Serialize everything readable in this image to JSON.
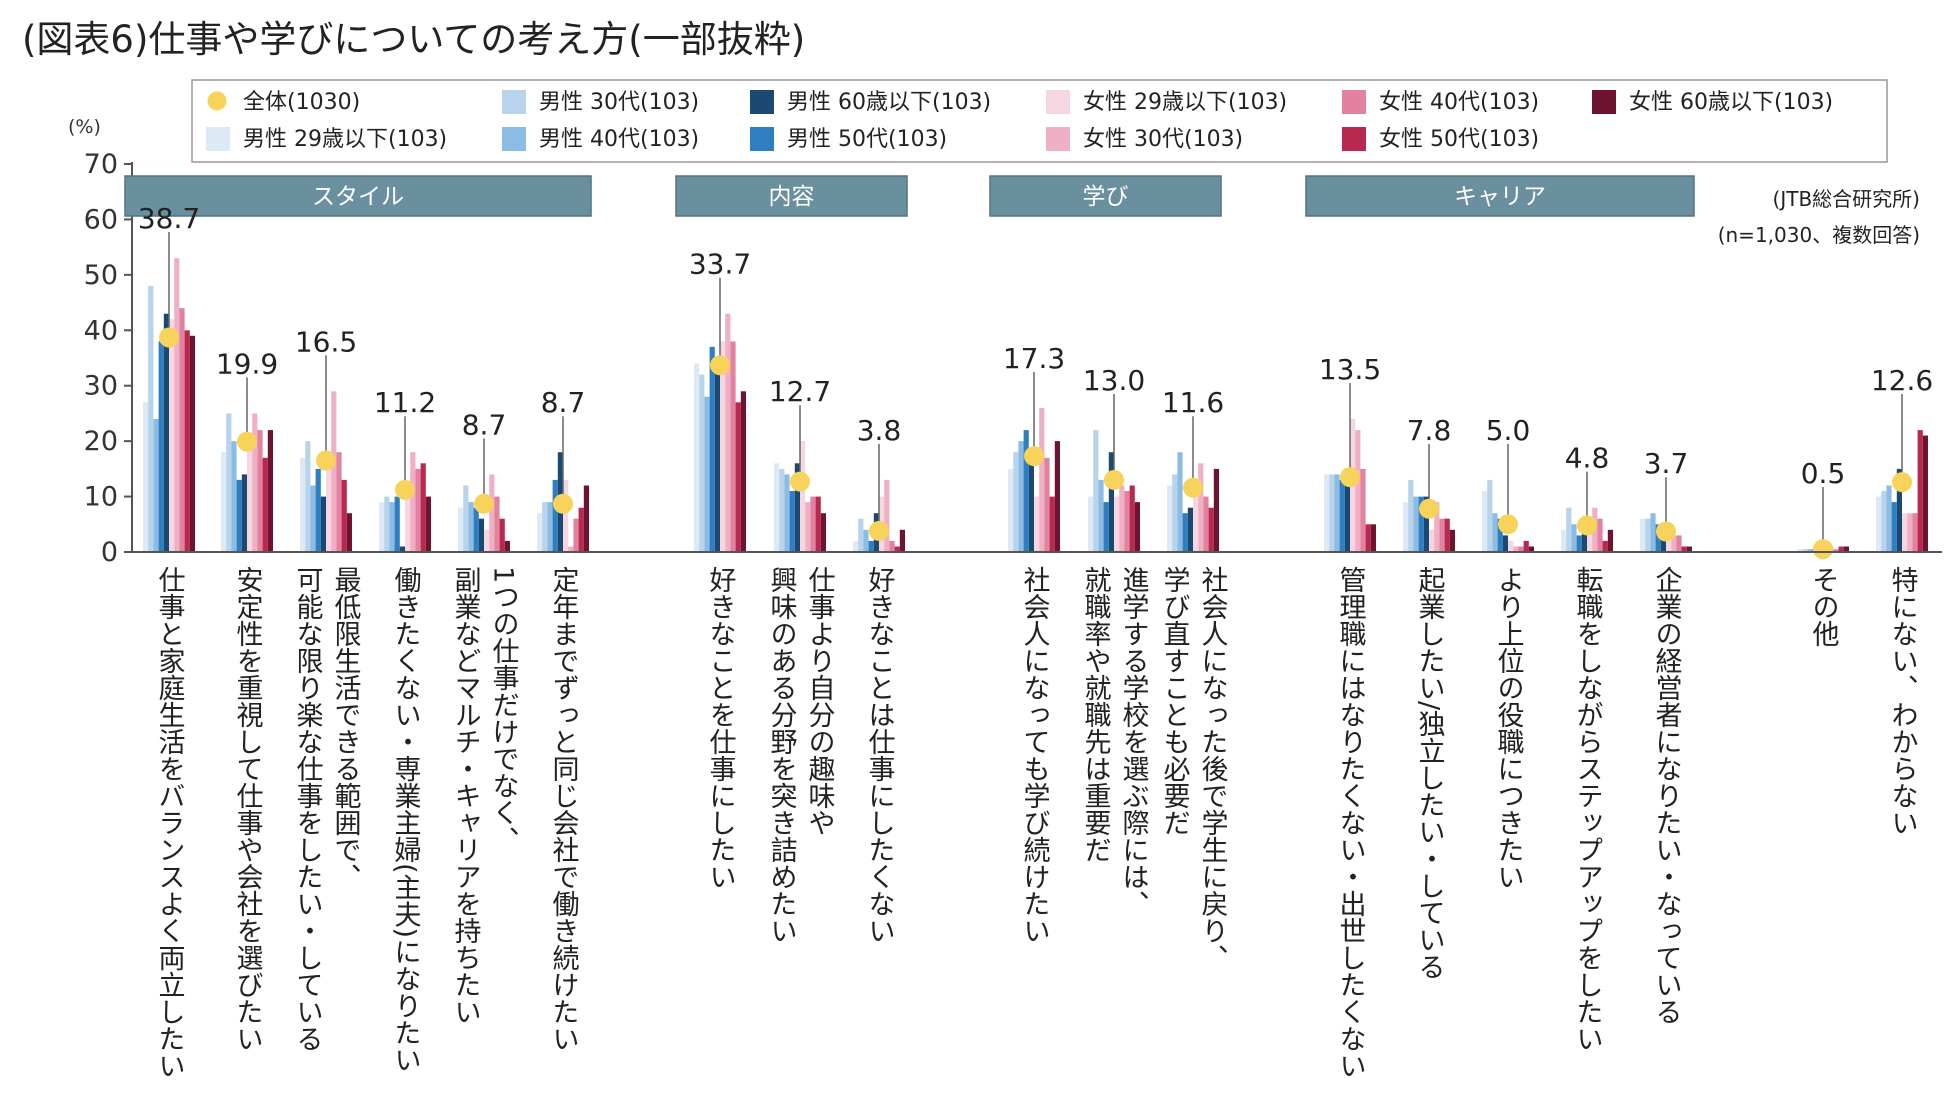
{
  "chart_data": {
    "type": "bar",
    "title": "(図表6)仕事や学びについての考え方(一部抜粋)",
    "ylabel": "(%)",
    "ylim": [
      0,
      70
    ],
    "yticks": [
      0,
      10,
      20,
      30,
      40,
      50,
      60,
      70
    ],
    "source_lines": [
      "(JTB総合研究所)",
      "(n=1,030、複数回答)"
    ],
    "groups": [
      {
        "label": "スタイル",
        "start": 0,
        "end": 5
      },
      {
        "label": "内容",
        "start": 6,
        "end": 8
      },
      {
        "label": "学び",
        "start": 9,
        "end": 11
      },
      {
        "label": "キャリア",
        "start": 12,
        "end": 16
      }
    ],
    "categories": [
      "仕事と家庭生活をバランスよく両立したい",
      "安定性を重視して仕事や会社を選びたい",
      "最低限生活できる範囲で、可能な限り楽な仕事をしたい・している",
      "働きたくない・専業主婦(主夫)になりたい",
      "1つの仕事だけでなく、副業などマルチ・キャリアを持ちたい",
      "定年までずっと同じ会社で働き続けたい",
      "好きなことを仕事にしたい",
      "仕事より自分の趣味や興味のある分野を突き詰めたい",
      "好きなことは仕事にしたくない",
      "社会人になっても学び続けたい",
      "進学する学校を選ぶ際には、就職率や就職先は重要だ",
      "社会人になった後で学生に戻り、学び直すことも必要だ",
      "管理職にはなりたくない・出世したくない",
      "起業したい/独立したい・している",
      "より上位の役職につきたい",
      "転職をしながらステップアップをしたい",
      "企業の経営者になりたい・なっている",
      "その他",
      "特にない、わからない"
    ],
    "category_lines": [
      [
        "仕事と家庭生活をバランスよく両立したい"
      ],
      [
        "安定性を重視して仕事や会社を選びたい"
      ],
      [
        "最低限生活できる範囲で、",
        "可能な限り楽な仕事をしたい・している"
      ],
      [
        "働きたくない・専業主婦(主夫)になりたい"
      ],
      [
        "1つの仕事だけでなく、",
        "副業などマルチ・キャリアを持ちたい"
      ],
      [
        "定年までずっと同じ会社で働き続けたい"
      ],
      [
        "好きなことを仕事にしたい"
      ],
      [
        "仕事より自分の趣味や",
        "興味のある分野を突き詰めたい"
      ],
      [
        "好きなことは仕事にしたくない"
      ],
      [
        "社会人になっても学び続けたい"
      ],
      [
        "進学する学校を選ぶ際には、",
        "就職率や就職先は重要だ"
      ],
      [
        "社会人になった後で学生に戻り、",
        "学び直すことも必要だ"
      ],
      [
        "管理職にはなりたくない・出世したくない"
      ],
      [
        "起業したい/独立したい・している"
      ],
      [
        "より上位の役職につきたい"
      ],
      [
        "転職をしながらステップアップをしたい"
      ],
      [
        "企業の経営者になりたい・なっている"
      ],
      [
        "その他"
      ],
      [
        "特にない、わからない"
      ]
    ],
    "total": {
      "name": "全体(1030)",
      "color": "#f7d35c",
      "values": [
        38.7,
        19.9,
        16.5,
        11.2,
        8.7,
        8.7,
        33.7,
        12.7,
        3.8,
        17.3,
        13.0,
        11.6,
        13.5,
        7.8,
        5.0,
        4.8,
        3.7,
        0.5,
        12.6
      ],
      "labels": [
        "38.7",
        "19.9",
        "16.5",
        "11.2",
        "8.7",
        "8.7",
        "33.7",
        "12.7",
        "3.8",
        "17.3",
        "13.0",
        "11.6",
        "13.5",
        "7.8",
        "5.0",
        "4.8",
        "3.7",
        "0.5",
        "12.6"
      ]
    },
    "series": [
      {
        "name": "男性 29歳以下(103)",
        "color": "#dde9f5",
        "values": [
          27,
          18,
          17,
          9,
          8,
          7,
          34,
          16,
          2,
          15,
          10,
          12,
          14,
          9,
          11,
          4,
          6,
          0.5,
          10
        ]
      },
      {
        "name": "男性 30代(103)",
        "color": "#b8d4ec",
        "values": [
          48,
          25,
          20,
          10,
          12,
          9,
          32,
          15,
          6,
          18,
          22,
          14,
          14,
          13,
          13,
          8,
          6,
          0.5,
          11
        ]
      },
      {
        "name": "男性 40代(103)",
        "color": "#8cbce3",
        "values": [
          24,
          20,
          12,
          9,
          9,
          9,
          28,
          14,
          4,
          20,
          13,
          18,
          14,
          10,
          7,
          5,
          7,
          0.5,
          12
        ]
      },
      {
        "name": "男性 50代(103)",
        "color": "#2f7fc0",
        "values": [
          38,
          13,
          15,
          10,
          8,
          13,
          37,
          11,
          2,
          22,
          9,
          7,
          13,
          10,
          6,
          3,
          5,
          0.5,
          9
        ]
      },
      {
        "name": "男性 60歳以下(103)",
        "color": "#1a4a72",
        "values": [
          43,
          14,
          10,
          1,
          6,
          18,
          33,
          16,
          7,
          17,
          18,
          8,
          14,
          10,
          3,
          4,
          5,
          0.5,
          15
        ]
      },
      {
        "name": "女性 29歳以下(103)",
        "color": "#f6d6e0",
        "values": [
          42,
          21,
          16,
          10,
          4,
          13,
          38,
          20,
          10,
          10,
          10,
          13,
          24,
          4,
          2,
          6,
          2,
          0.3,
          7
        ]
      },
      {
        "name": "女性 30代(103)",
        "color": "#efb0c4",
        "values": [
          53,
          25,
          29,
          18,
          14,
          1,
          43,
          9,
          13,
          26,
          12,
          16,
          22,
          9,
          1,
          8,
          3,
          1,
          7
        ]
      },
      {
        "name": "女性 40代(103)",
        "color": "#e3829e",
        "values": [
          44,
          22,
          18,
          15,
          10,
          6,
          38,
          10,
          2,
          17,
          11,
          10,
          15,
          6,
          1,
          6,
          3,
          0.5,
          7
        ]
      },
      {
        "name": "女性 50代(103)",
        "color": "#b8294f",
        "values": [
          40,
          17,
          13,
          16,
          6,
          8,
          27,
          10,
          1,
          10,
          12,
          8,
          5,
          6,
          2,
          2,
          1,
          1,
          22
        ]
      },
      {
        "name": "女性 60歳以下(103)",
        "color": "#6e1430",
        "values": [
          39,
          22,
          7,
          10,
          2,
          12,
          29,
          7,
          4,
          20,
          9,
          15,
          5,
          4,
          1,
          4,
          1,
          1,
          21
        ]
      }
    ],
    "legend_order": [
      [
        "total",
        1,
        4,
        5,
        7,
        9
      ],
      [
        0,
        2,
        3,
        6,
        8
      ]
    ]
  }
}
